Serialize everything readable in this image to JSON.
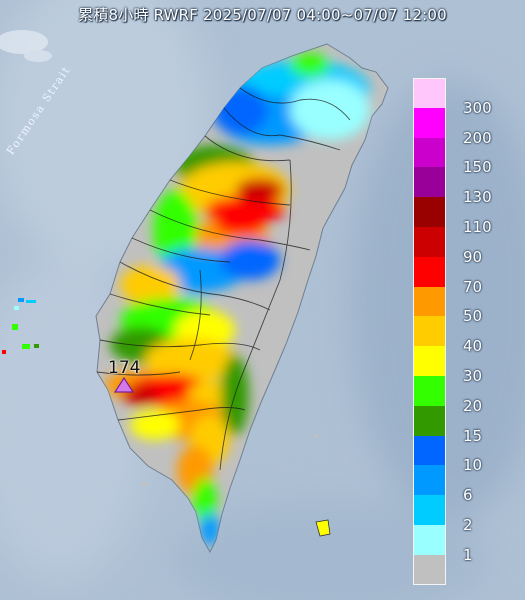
{
  "title": "累積8小時 RWRF 2025/07/07 04:00~07/07 12:00",
  "strait_label": "Formosa Strait",
  "max_value_label": "174",
  "legend": {
    "labels": [
      "300",
      "200",
      "150",
      "130",
      "110",
      "90",
      "70",
      "50",
      "40",
      "30",
      "20",
      "15",
      "10",
      "6",
      "2",
      "1"
    ],
    "colors": [
      "#ffc6fb",
      "#ff00ff",
      "#cc00cc",
      "#990099",
      "#990000",
      "#cc0000",
      "#ff0000",
      "#ff9900",
      "#ffcc00",
      "#ffff00",
      "#33ff00",
      "#339900",
      "#0066ff",
      "#0099ff",
      "#00ccff",
      "#99ffff",
      "#c0c0c0"
    ]
  },
  "icons": {
    "max_marker": "triangle-marker-icon"
  },
  "colors": {
    "sea": "#aec0d4",
    "land_gray": "#c0c0c0",
    "county_border": "#1a1a1a"
  }
}
